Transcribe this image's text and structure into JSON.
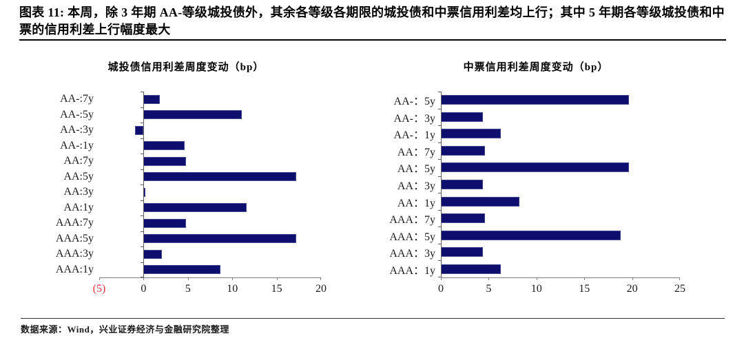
{
  "header": {
    "title": "图表 11: 本周，除 3 年期 AA-等级城投债外，其余各等级各期限的城投债和中票信用利差均上行；其中 5 年期各等级城投债和中票的信用利差上行幅度最大"
  },
  "footer": {
    "source": "数据来源：Wind，兴业证券经济与金融研究院整理"
  },
  "colors": {
    "bar": "#0e0e6e",
    "axis": "#808080",
    "axis_dark": "#595959",
    "negative_tick": "#e8353f",
    "text": "#1a1a1a"
  },
  "chart_data": [
    {
      "type": "bar",
      "orientation": "horizontal",
      "title": "城投债信用利差周度变动（bp）",
      "categories": [
        "AA-:7y",
        "AA-:5y",
        "AA-:3y",
        "AA-:1y",
        "AA:7y",
        "AA:5y",
        "AA:3y",
        "AA:1y",
        "AAA:7y",
        "AAA:5y",
        "AAA:3y",
        "AAA:1y"
      ],
      "values": [
        1.8,
        11.1,
        -1.0,
        4.6,
        4.8,
        17.2,
        0.2,
        11.6,
        4.8,
        17.2,
        2.1,
        8.7
      ],
      "xlim": [
        -5,
        20
      ],
      "grid": false,
      "legend": "none",
      "xticks": [
        {
          "value": -5,
          "label": "(5)",
          "color": "#e8353f"
        },
        {
          "value": 0,
          "label": "0"
        },
        {
          "value": 5,
          "label": "5"
        },
        {
          "value": 10,
          "label": "10"
        },
        {
          "value": 15,
          "label": "15"
        },
        {
          "value": 20,
          "label": "20"
        }
      ]
    },
    {
      "type": "bar",
      "orientation": "horizontal",
      "title": "中票信用利差周度变动（bp）",
      "categories": [
        "AA-：5y",
        "AA-：3y",
        "AA-：1y",
        "AA：7y",
        "AA：5y",
        "AA：3y",
        "AA：1y",
        "AAA：7y",
        "AAA：5y",
        "AAA：3y",
        "AAA：1y"
      ],
      "values": [
        19.7,
        4.4,
        6.3,
        4.6,
        19.7,
        4.4,
        8.2,
        4.6,
        18.8,
        4.4,
        6.3
      ],
      "xlim": [
        0,
        25
      ],
      "grid": false,
      "legend": "none",
      "xticks": [
        {
          "value": 0,
          "label": "0"
        },
        {
          "value": 5,
          "label": "5"
        },
        {
          "value": 10,
          "label": "10"
        },
        {
          "value": 15,
          "label": "15"
        },
        {
          "value": 20,
          "label": "20"
        },
        {
          "value": 25,
          "label": "25"
        }
      ]
    }
  ]
}
